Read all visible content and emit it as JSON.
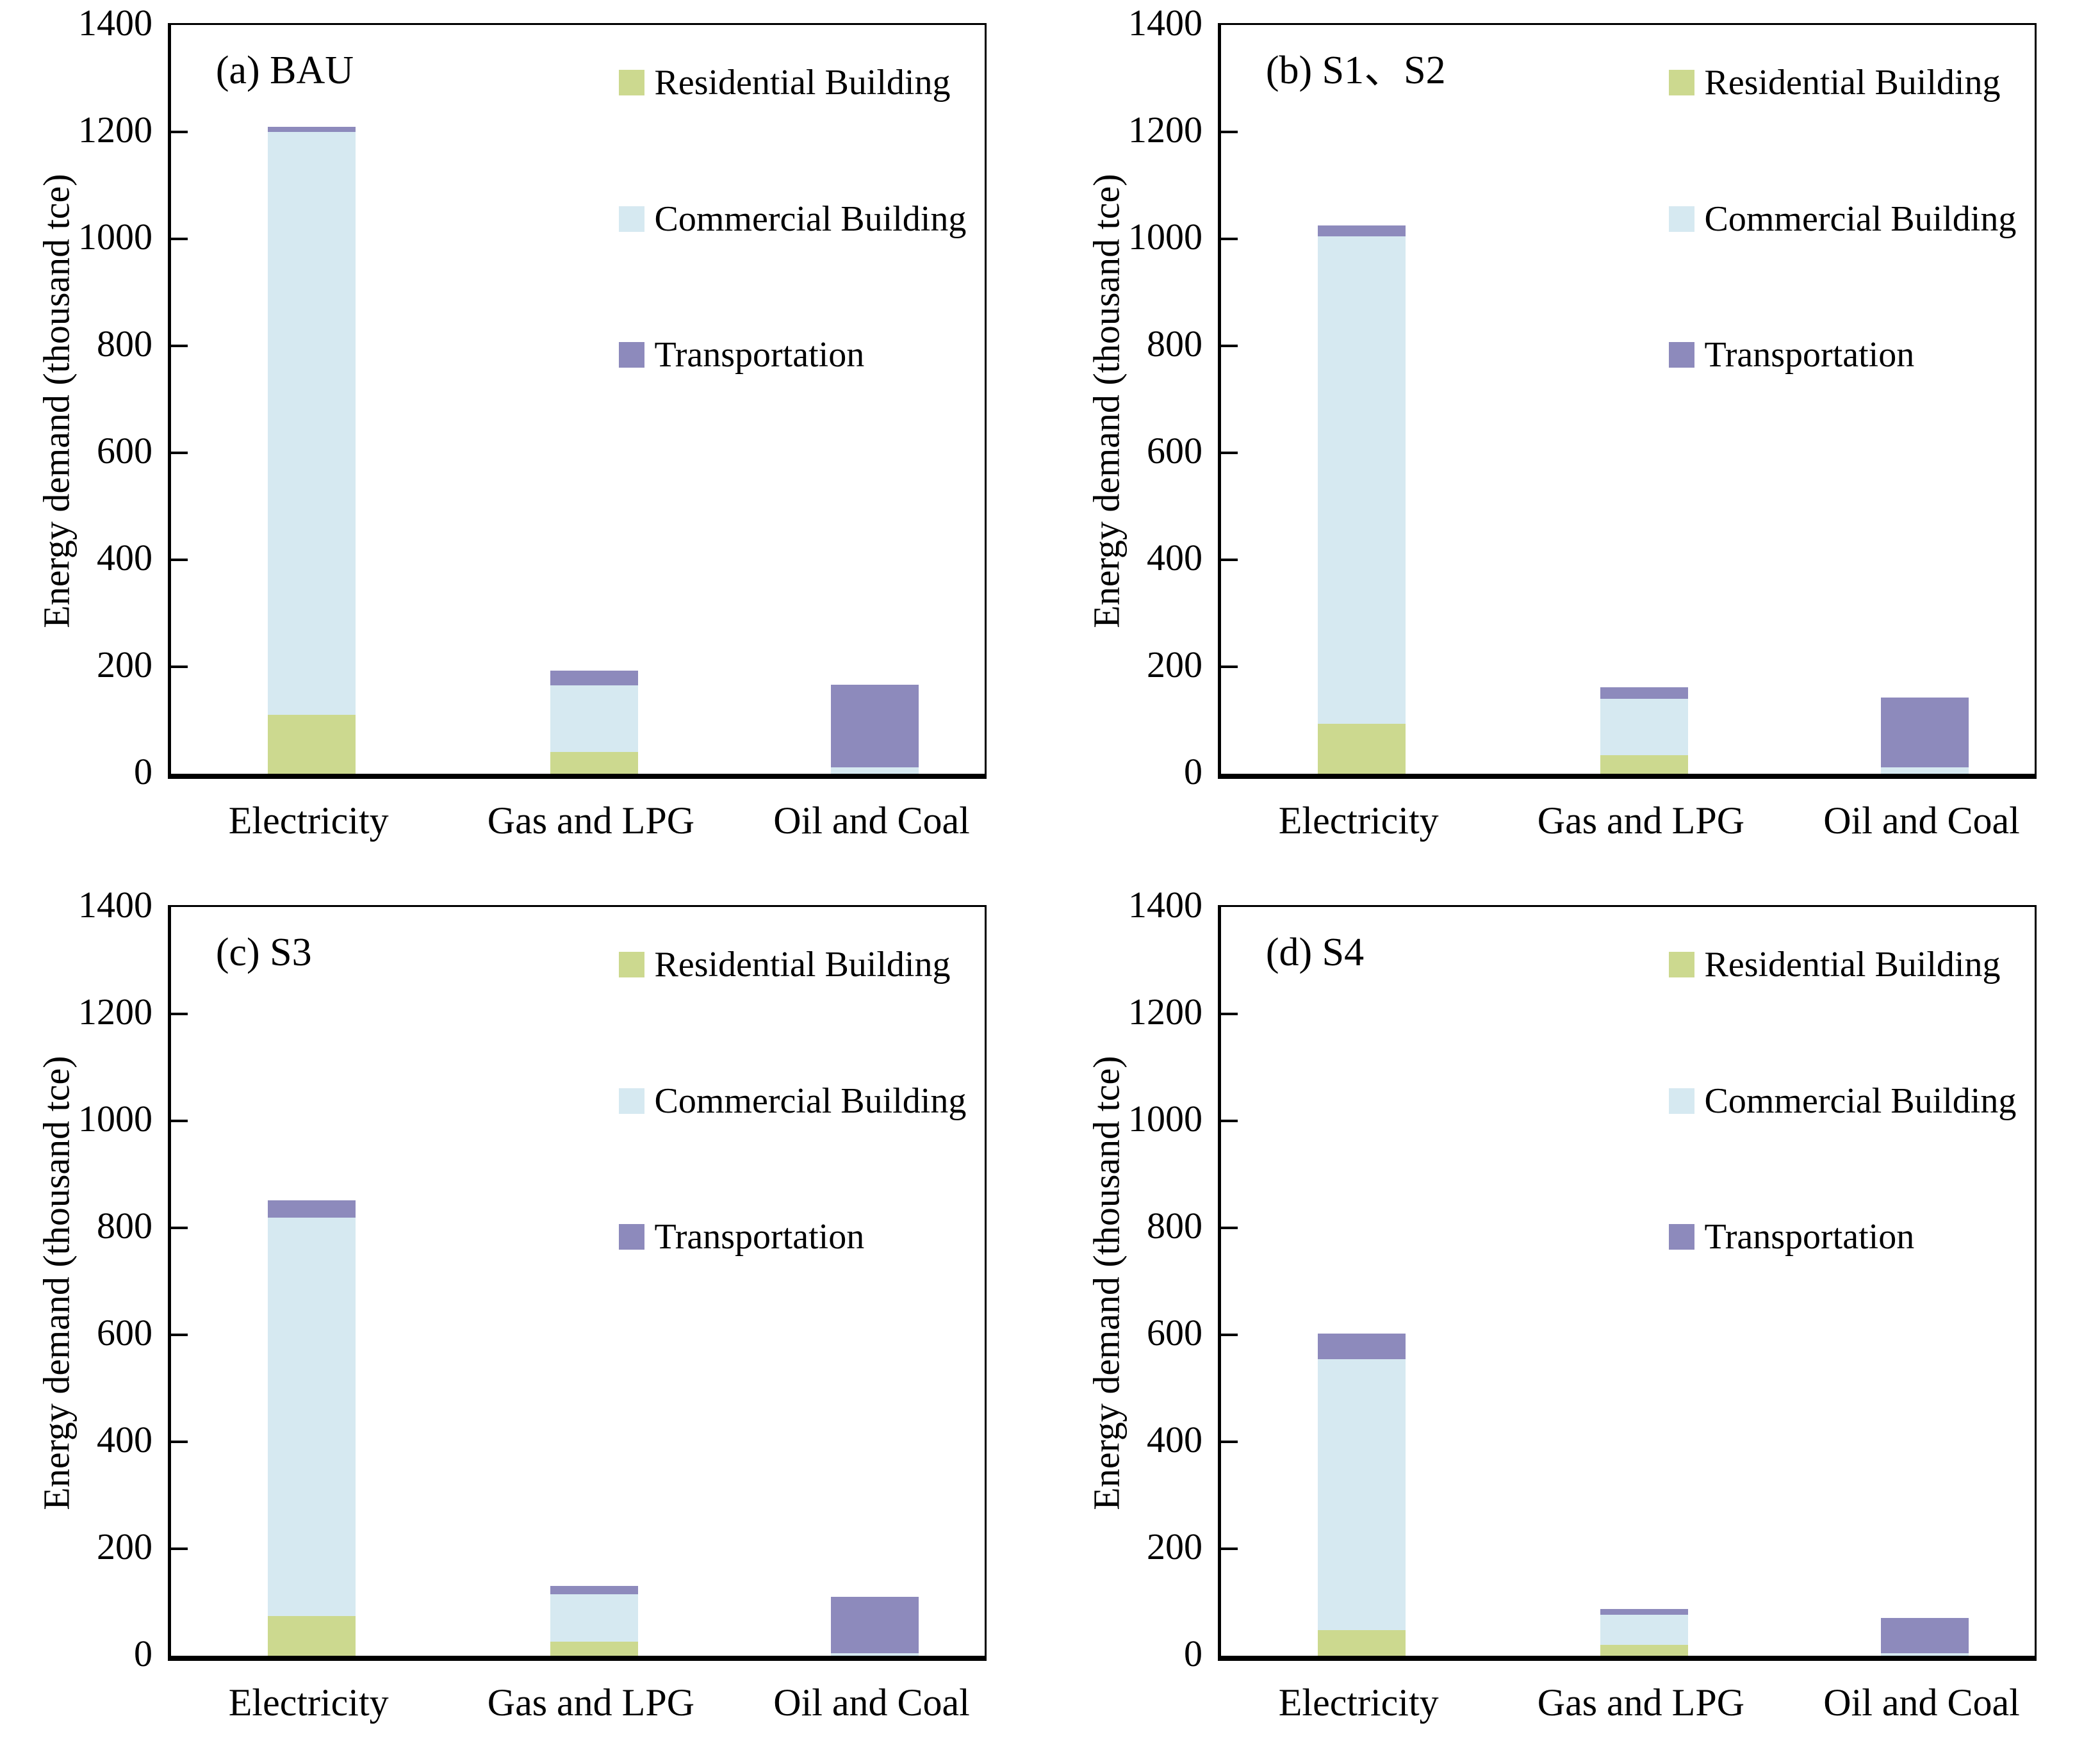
{
  "figure": {
    "ylabel": "Energy demand (thousand tce)",
    "ylim": [
      0,
      1400
    ],
    "yticks": [
      0,
      200,
      400,
      600,
      800,
      1000,
      1200,
      1400
    ],
    "categories": [
      "Electricity",
      "Gas and LPG",
      "Oil and Coal"
    ],
    "legend": [
      {
        "name": "Residential Building",
        "color": "#ccd98f"
      },
      {
        "name": "Commercial Building",
        "color": "#d6e9f1"
      },
      {
        "name": "Transportation",
        "color": "#8d8abc"
      }
    ],
    "axis_color": "#000000",
    "background_color": "#ffffff"
  },
  "chart_data": [
    {
      "type": "bar",
      "stacked": true,
      "panel_label": "(a) BAU",
      "categories": [
        "Electricity",
        "Gas and LPG",
        "Oil and Coal"
      ],
      "series": [
        {
          "name": "Residential Building",
          "values": [
            110,
            41,
            0
          ]
        },
        {
          "name": "Commercial Building",
          "values": [
            1090,
            124,
            12
          ]
        },
        {
          "name": "Transportation",
          "values": [
            10,
            28,
            154
          ]
        }
      ],
      "ylabel": "Energy demand (thousand tce)",
      "ylim": [
        0,
        1400
      ],
      "grid": false,
      "legend_position": "inside upper right"
    },
    {
      "type": "bar",
      "stacked": true,
      "panel_label": "(b) S1、S2",
      "categories": [
        "Electricity",
        "Gas and LPG",
        "Oil and Coal"
      ],
      "series": [
        {
          "name": "Residential Building",
          "values": [
            93,
            35,
            0
          ]
        },
        {
          "name": "Commercial Building",
          "values": [
            912,
            105,
            12
          ]
        },
        {
          "name": "Transportation",
          "values": [
            20,
            22,
            131
          ]
        }
      ],
      "ylabel": "Energy demand (thousand tce)",
      "ylim": [
        0,
        1400
      ],
      "grid": false,
      "legend_position": "inside upper right"
    },
    {
      "type": "bar",
      "stacked": true,
      "panel_label": "(c) S3",
      "categories": [
        "Electricity",
        "Gas and LPG",
        "Oil and Coal"
      ],
      "series": [
        {
          "name": "Residential Building",
          "values": [
            74,
            26,
            0
          ]
        },
        {
          "name": "Commercial Building",
          "values": [
            745,
            89,
            5
          ]
        },
        {
          "name": "Transportation",
          "values": [
            33,
            16,
            105
          ]
        }
      ],
      "ylabel": "Energy demand (thousand tce)",
      "ylim": [
        0,
        1400
      ],
      "grid": false,
      "legend_position": "inside upper right"
    },
    {
      "type": "bar",
      "stacked": true,
      "panel_label": "(d) S4",
      "categories": [
        "Electricity",
        "Gas and LPG",
        "Oil and Coal"
      ],
      "series": [
        {
          "name": "Residential Building",
          "values": [
            48,
            20,
            0
          ]
        },
        {
          "name": "Commercial Building",
          "values": [
            507,
            57,
            5
          ]
        },
        {
          "name": "Transportation",
          "values": [
            47,
            10,
            66
          ]
        }
      ],
      "ylabel": "Energy demand (thousand tce)",
      "ylim": [
        0,
        1400
      ],
      "grid": false,
      "legend_position": "inside upper right"
    }
  ]
}
